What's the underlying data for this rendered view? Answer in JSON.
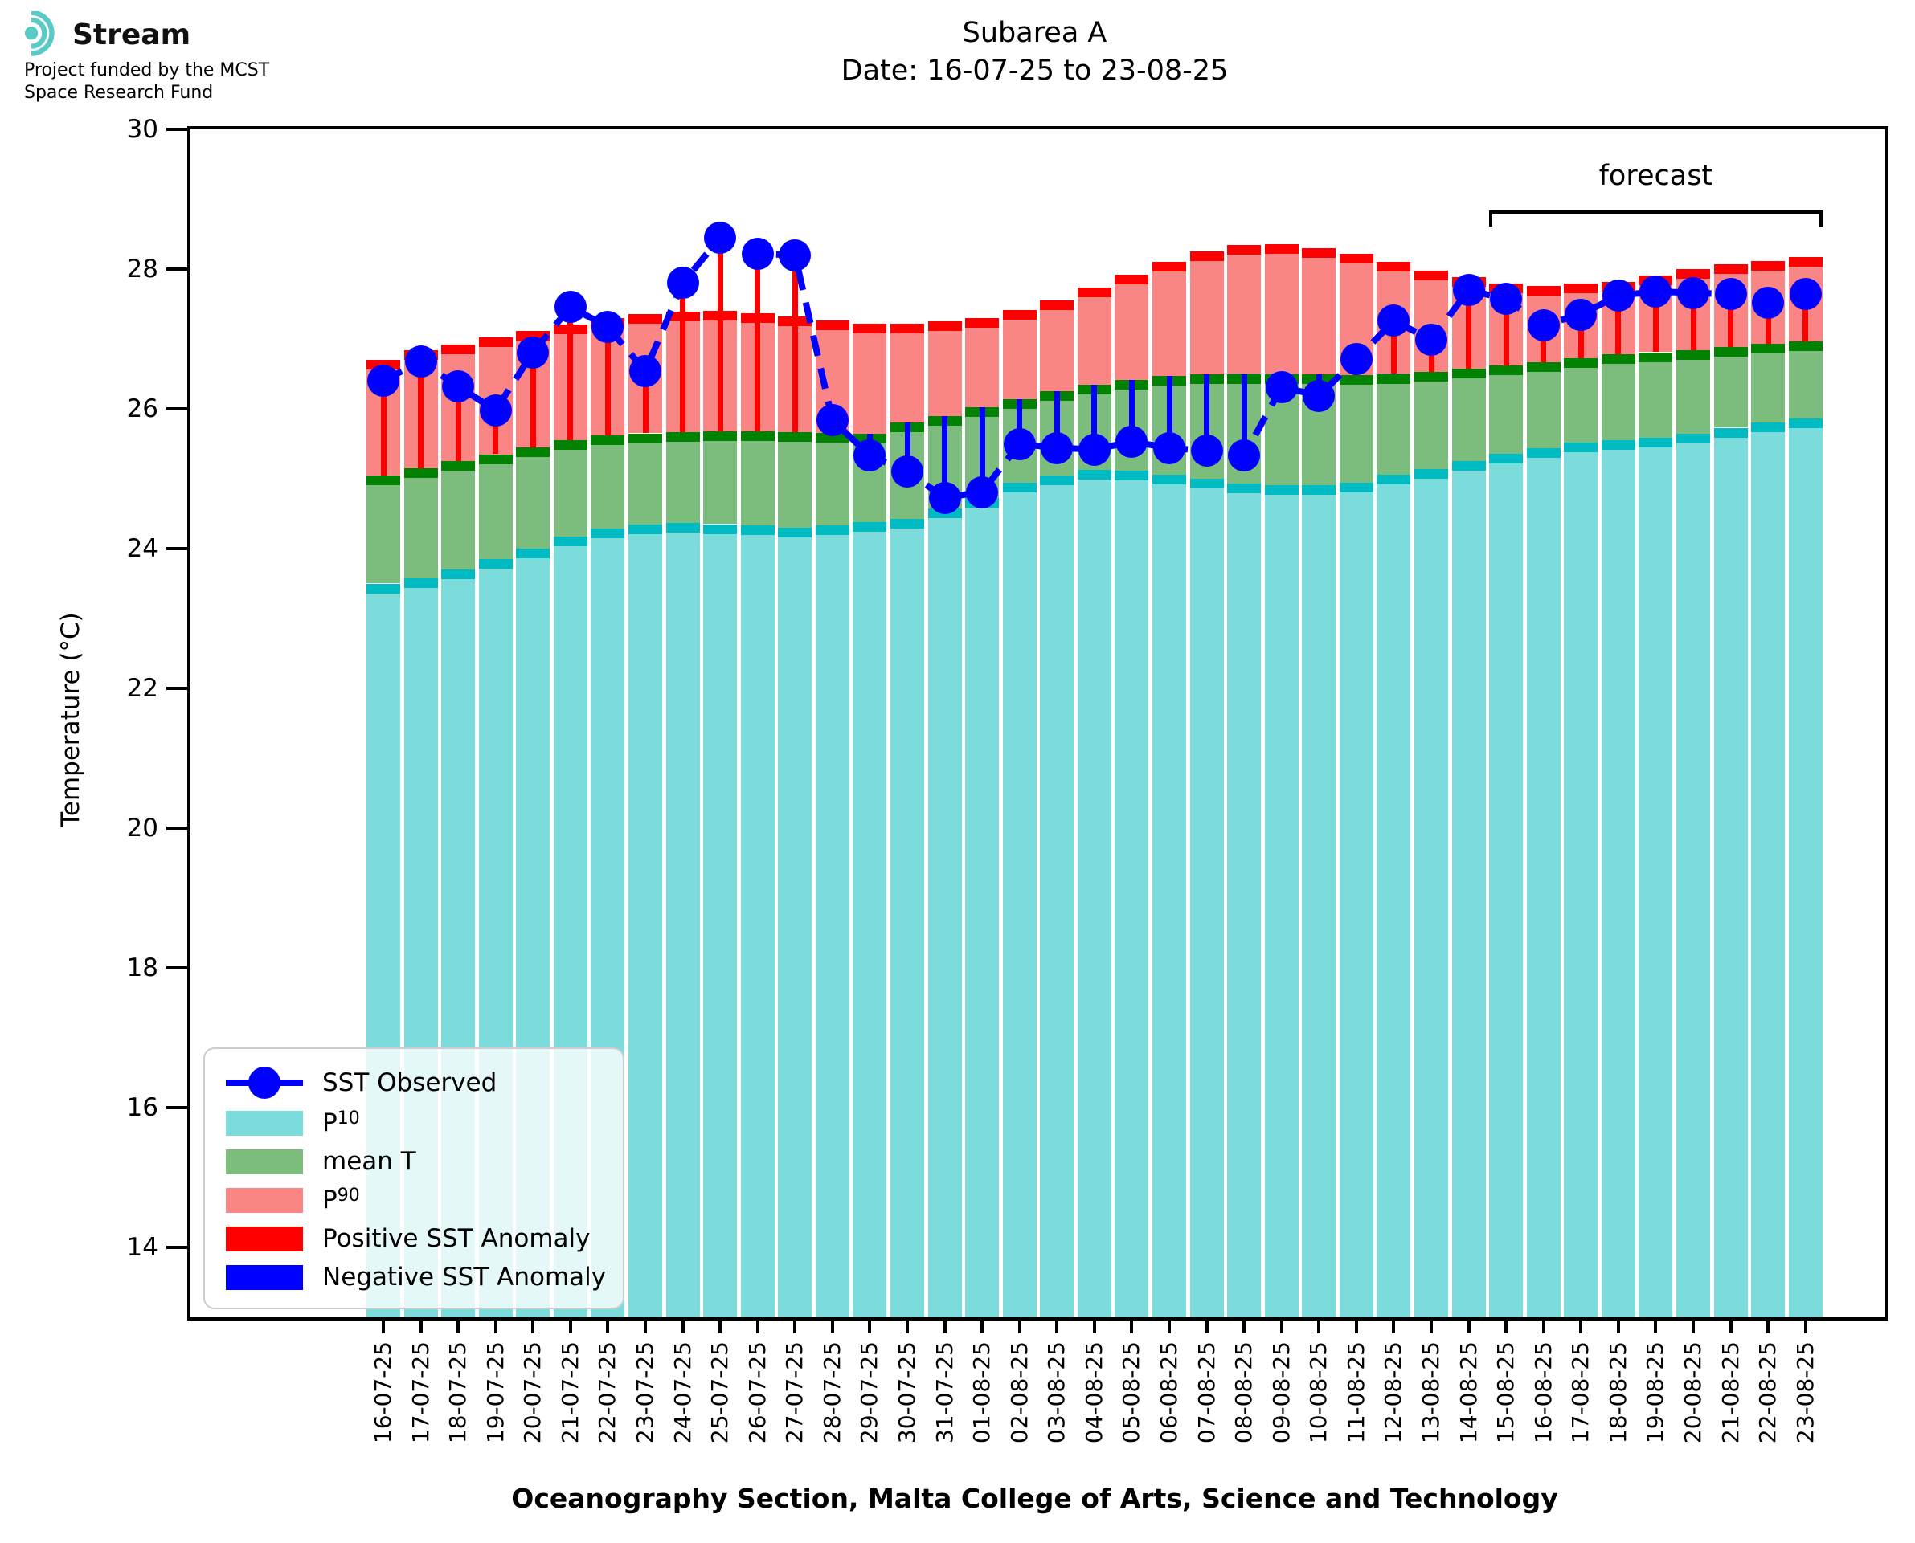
{
  "branding": {
    "logo_text": "Stream",
    "funding_line1": "Project funded by the MCST",
    "funding_line2": "Space Research Fund"
  },
  "title": {
    "line1": "Subarea A",
    "line2": "Date: 16-07-25 to 23-08-25"
  },
  "axes": {
    "ylabel": "Temperature (°C)",
    "xlabel": "Oceanography Section, Malta College of Arts, Science and Technology"
  },
  "annotations": {
    "forecast_label": "forecast",
    "forecast_start_category": "15-08-25",
    "forecast_end_category": "23-08-25"
  },
  "legend": [
    {
      "marker": "line-dot",
      "color_key": "observed",
      "label_pre": "SST Observed",
      "sub": ""
    },
    {
      "marker": "patch",
      "color_key": "p10_fill",
      "label_pre": "P",
      "sub": "10"
    },
    {
      "marker": "patch",
      "color_key": "mean_fill",
      "label_pre": "mean T",
      "sub": ""
    },
    {
      "marker": "patch",
      "color_key": "p90_fill",
      "label_pre": "P",
      "sub": "90"
    },
    {
      "marker": "patch",
      "color_key": "positive_anomaly",
      "label_pre": "Positive SST Anomaly",
      "sub": ""
    },
    {
      "marker": "patch",
      "color_key": "negative_anomaly",
      "label_pre": "Negative SST Anomaly",
      "sub": ""
    }
  ],
  "colors": {
    "p10_fill": "#7cdbdb",
    "p10_cap": "#00bcc2",
    "mean_fill": "#7cbd7e",
    "mean_cap": "#028202",
    "p90_fill": "#fa8585",
    "p90_cap": "#ff0000",
    "positive_anomaly": "#ff0000",
    "negative_anomaly": "#0000ff",
    "observed": "#0000ff"
  },
  "chart_data": {
    "type": "bar",
    "subtype": "stacked percentile bands with observed SST line and anomaly stems",
    "title": "Subarea A  Date: 16-07-25 to 23-08-25",
    "xlabel": "Oceanography Section, Malta College of Arts, Science and Technology",
    "ylabel": "Temperature (°C)",
    "ylim": [
      13.0,
      30.0
    ],
    "yticks": [
      14,
      16,
      18,
      20,
      22,
      24,
      26,
      28,
      30
    ],
    "bar_baseline": 13.0,
    "grid": false,
    "legend_position": "lower left",
    "categories": [
      "16-07-25",
      "17-07-25",
      "18-07-25",
      "19-07-25",
      "20-07-25",
      "21-07-25",
      "22-07-25",
      "23-07-25",
      "24-07-25",
      "25-07-25",
      "26-07-25",
      "27-07-25",
      "28-07-25",
      "29-07-25",
      "30-07-25",
      "31-07-25",
      "01-08-25",
      "02-08-25",
      "03-08-25",
      "04-08-25",
      "05-08-25",
      "06-08-25",
      "07-08-25",
      "08-08-25",
      "09-08-25",
      "10-08-25",
      "11-08-25",
      "12-08-25",
      "13-08-25",
      "14-08-25",
      "15-08-25",
      "16-08-25",
      "17-08-25",
      "18-08-25",
      "19-08-25",
      "20-08-25",
      "21-08-25",
      "22-08-25",
      "23-08-25"
    ],
    "series": [
      {
        "name": "P10",
        "type": "band_top",
        "values": [
          23.5,
          23.57,
          23.7,
          23.85,
          24.0,
          24.17,
          24.29,
          24.35,
          24.37,
          24.35,
          24.33,
          24.3,
          24.33,
          24.38,
          24.43,
          24.58,
          24.72,
          24.94,
          25.05,
          25.13,
          25.11,
          25.06,
          25.0,
          24.93,
          24.91,
          24.91,
          24.94,
          25.06,
          25.14,
          25.25,
          25.36,
          25.44,
          25.52,
          25.55,
          25.59,
          25.64,
          25.73,
          25.8,
          25.86
        ]
      },
      {
        "name": "mean T",
        "type": "band_top",
        "values": [
          25.05,
          25.15,
          25.25,
          25.35,
          25.45,
          25.55,
          25.62,
          25.65,
          25.67,
          25.68,
          25.68,
          25.67,
          25.66,
          25.64,
          25.8,
          25.9,
          26.02,
          26.14,
          26.25,
          26.34,
          26.42,
          26.47,
          26.49,
          26.5,
          26.5,
          26.49,
          26.48,
          26.5,
          26.53,
          26.57,
          26.62,
          26.67,
          26.72,
          26.78,
          26.81,
          26.84,
          26.88,
          26.93,
          26.97
        ]
      },
      {
        "name": "P90",
        "type": "band_top",
        "values": [
          26.7,
          26.84,
          26.92,
          27.02,
          27.12,
          27.21,
          27.3,
          27.36,
          27.39,
          27.4,
          27.37,
          27.32,
          27.27,
          27.22,
          27.22,
          27.25,
          27.3,
          27.41,
          27.55,
          27.74,
          27.92,
          28.1,
          28.25,
          28.34,
          28.36,
          28.3,
          28.22,
          28.1,
          27.98,
          27.88,
          27.79,
          27.76,
          27.79,
          27.82,
          27.91,
          28.0,
          28.07,
          28.12,
          28.17
        ]
      },
      {
        "name": "SST Observed",
        "type": "line_markers_dashed",
        "values": [
          26.4,
          26.68,
          26.32,
          25.98,
          26.81,
          27.46,
          27.17,
          26.54,
          27.8,
          28.45,
          28.22,
          28.2,
          25.84,
          25.33,
          25.1,
          24.73,
          24.81,
          25.5,
          25.44,
          25.42,
          25.53,
          25.44,
          25.4,
          25.33,
          26.31,
          26.19,
          26.71,
          27.26,
          26.99,
          27.7,
          27.57,
          27.2,
          27.35,
          27.62,
          27.68,
          27.66,
          27.64,
          27.52,
          27.64
        ]
      }
    ],
    "anomaly_note": "red stem where SST Observed > mean T (positive anomaly), blue stem where SST Observed < mean T (negative anomaly)"
  }
}
